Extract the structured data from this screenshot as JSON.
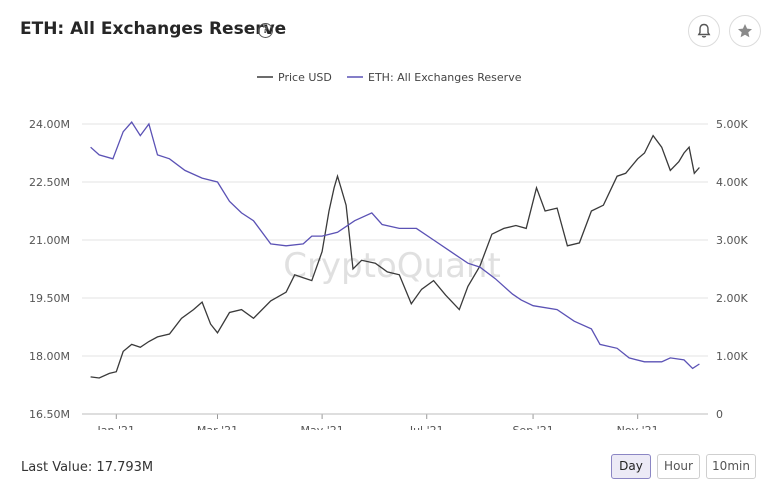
{
  "header": {
    "title": "ETH: All Exchanges Reserve",
    "help_glyph": "?",
    "icons": {
      "help": "help-icon",
      "bell": "bell-icon",
      "star": "star-icon"
    }
  },
  "footer": {
    "last_value": "Last Value: 17.793M",
    "buttons": {
      "day": "Day",
      "hour": "Hour",
      "tenmin": "10min"
    },
    "active": "Day"
  },
  "watermark": "CryptoQuant",
  "chart_data": {
    "type": "line",
    "legend": [
      "Price USD",
      "ETH: All Exchanges Reserve"
    ],
    "legend_placement": "top-center",
    "grid": true,
    "x_ticks": [
      "Jan '21",
      "Mar '21",
      "May '21",
      "Jul '21",
      "Sep '21",
      "Nov '21"
    ],
    "y_left": {
      "ticks": [
        "16.50M",
        "18.00M",
        "19.50M",
        "21.00M",
        "22.50M",
        "24.00M"
      ],
      "range": [
        16.5,
        24.0
      ],
      "unit": "M"
    },
    "y_right": {
      "ticks": [
        "0",
        "1.00K",
        "2.00K",
        "3.00K",
        "4.00K",
        "5.00K"
      ],
      "range": [
        0,
        5000
      ]
    },
    "colors": {
      "price": "#3a3a3a",
      "reserve": "#5b52b5"
    },
    "series": [
      {
        "name": "ETH: All Exchanges Reserve",
        "axis": "left",
        "color": "#5b52b5",
        "points": [
          [
            "2020-12-17",
            23.4
          ],
          [
            "2020-12-22",
            23.2
          ],
          [
            "2020-12-30",
            23.1
          ],
          [
            "2021-01-05",
            23.8
          ],
          [
            "2021-01-10",
            24.05
          ],
          [
            "2021-01-15",
            23.7
          ],
          [
            "2021-01-20",
            24.0
          ],
          [
            "2021-01-25",
            23.2
          ],
          [
            "2021-02-01",
            23.1
          ],
          [
            "2021-02-10",
            22.8
          ],
          [
            "2021-02-20",
            22.6
          ],
          [
            "2021-03-01",
            22.5
          ],
          [
            "2021-03-08",
            22.0
          ],
          [
            "2021-03-15",
            21.7
          ],
          [
            "2021-03-22",
            21.5
          ],
          [
            "2021-04-01",
            20.9
          ],
          [
            "2021-04-10",
            20.85
          ],
          [
            "2021-04-20",
            20.9
          ],
          [
            "2021-04-25",
            21.1
          ],
          [
            "2021-05-01",
            21.1
          ],
          [
            "2021-05-10",
            21.2
          ],
          [
            "2021-05-20",
            21.5
          ],
          [
            "2021-05-30",
            21.7
          ],
          [
            "2021-06-05",
            21.4
          ],
          [
            "2021-06-15",
            21.3
          ],
          [
            "2021-06-25",
            21.3
          ],
          [
            "2021-07-05",
            21.0
          ],
          [
            "2021-07-15",
            20.7
          ],
          [
            "2021-07-25",
            20.4
          ],
          [
            "2021-08-01",
            20.3
          ],
          [
            "2021-08-10",
            20.0
          ],
          [
            "2021-08-20",
            19.6
          ],
          [
            "2021-08-25",
            19.45
          ],
          [
            "2021-09-01",
            19.3
          ],
          [
            "2021-09-15",
            19.2
          ],
          [
            "2021-09-25",
            18.9
          ],
          [
            "2021-10-05",
            18.7
          ],
          [
            "2021-10-10",
            18.3
          ],
          [
            "2021-10-20",
            18.2
          ],
          [
            "2021-10-27",
            17.95
          ],
          [
            "2021-11-05",
            17.85
          ],
          [
            "2021-11-15",
            17.85
          ],
          [
            "2021-11-20",
            17.95
          ],
          [
            "2021-11-28",
            17.9
          ],
          [
            "2021-12-03",
            17.68
          ],
          [
            "2021-12-07",
            17.793
          ]
        ]
      },
      {
        "name": "Price USD",
        "axis": "right",
        "color": "#3a3a3a",
        "points": [
          [
            "2020-12-17",
            640
          ],
          [
            "2020-12-22",
            620
          ],
          [
            "2020-12-28",
            700
          ],
          [
            "2021-01-01",
            730
          ],
          [
            "2021-01-05",
            1080
          ],
          [
            "2021-01-10",
            1200
          ],
          [
            "2021-01-15",
            1150
          ],
          [
            "2021-01-20",
            1250
          ],
          [
            "2021-01-25",
            1330
          ],
          [
            "2021-02-01",
            1380
          ],
          [
            "2021-02-08",
            1650
          ],
          [
            "2021-02-15",
            1800
          ],
          [
            "2021-02-20",
            1930
          ],
          [
            "2021-02-25",
            1550
          ],
          [
            "2021-03-01",
            1400
          ],
          [
            "2021-03-08",
            1750
          ],
          [
            "2021-03-15",
            1800
          ],
          [
            "2021-03-22",
            1650
          ],
          [
            "2021-04-01",
            1950
          ],
          [
            "2021-04-10",
            2100
          ],
          [
            "2021-04-15",
            2400
          ],
          [
            "2021-04-20",
            2350
          ],
          [
            "2021-04-25",
            2300
          ],
          [
            "2021-05-01",
            2800
          ],
          [
            "2021-05-05",
            3500
          ],
          [
            "2021-05-08",
            3900
          ],
          [
            "2021-05-10",
            4100
          ],
          [
            "2021-05-12",
            3900
          ],
          [
            "2021-05-15",
            3600
          ],
          [
            "2021-05-19",
            2500
          ],
          [
            "2021-05-24",
            2650
          ],
          [
            "2021-06-01",
            2600
          ],
          [
            "2021-06-08",
            2450
          ],
          [
            "2021-06-15",
            2400
          ],
          [
            "2021-06-22",
            1900
          ],
          [
            "2021-06-28",
            2150
          ],
          [
            "2021-07-05",
            2300
          ],
          [
            "2021-07-12",
            2050
          ],
          [
            "2021-07-20",
            1800
          ],
          [
            "2021-07-25",
            2200
          ],
          [
            "2021-08-01",
            2550
          ],
          [
            "2021-08-08",
            3100
          ],
          [
            "2021-08-15",
            3200
          ],
          [
            "2021-08-22",
            3250
          ],
          [
            "2021-08-28",
            3200
          ],
          [
            "2021-09-03",
            3900
          ],
          [
            "2021-09-08",
            3500
          ],
          [
            "2021-09-15",
            3550
          ],
          [
            "2021-09-21",
            2900
          ],
          [
            "2021-09-28",
            2950
          ],
          [
            "2021-10-05",
            3500
          ],
          [
            "2021-10-12",
            3600
          ],
          [
            "2021-10-20",
            4100
          ],
          [
            "2021-10-25",
            4150
          ],
          [
            "2021-11-01",
            4400
          ],
          [
            "2021-11-05",
            4500
          ],
          [
            "2021-11-10",
            4800
          ],
          [
            "2021-11-15",
            4600
          ],
          [
            "2021-11-20",
            4200
          ],
          [
            "2021-11-25",
            4350
          ],
          [
            "2021-11-28",
            4500
          ],
          [
            "2021-12-01",
            4600
          ],
          [
            "2021-12-04",
            4150
          ],
          [
            "2021-12-07",
            4250
          ]
        ]
      }
    ]
  }
}
